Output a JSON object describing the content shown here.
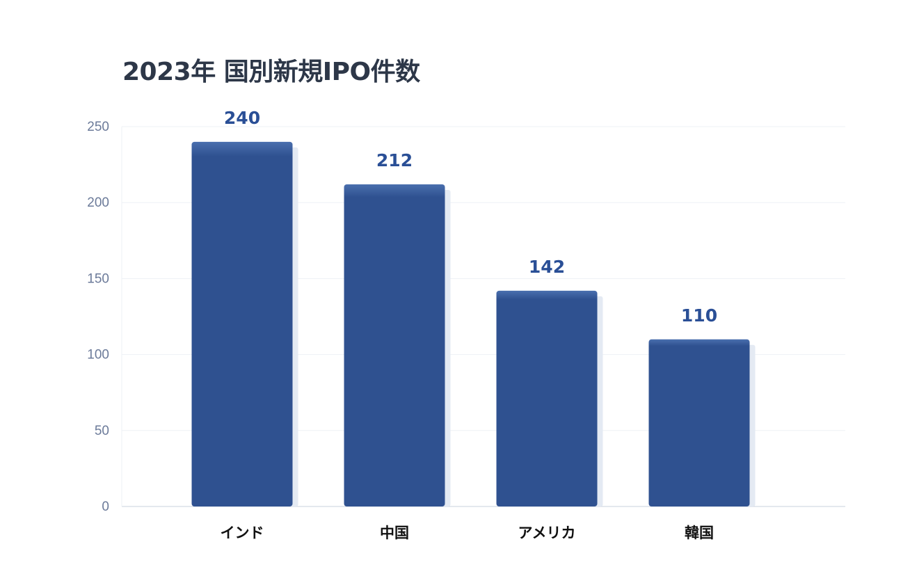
{
  "chart_data": {
    "type": "bar",
    "title": "2023年 国別新規IPO件数",
    "categories": [
      "インド",
      "中国",
      "アメリカ",
      "韓国"
    ],
    "values": [
      240,
      212,
      142,
      110
    ],
    "data_labels": [
      "240",
      "212",
      "142",
      "110"
    ],
    "yticks": [
      0,
      50,
      100,
      150,
      200,
      250
    ],
    "ylim": [
      0,
      250
    ],
    "grid": true,
    "legend": "none",
    "colors": {
      "bar": "#2f5190",
      "label": "#2a4f96",
      "title": "#2d3748",
      "tick": "#6b7a99",
      "grid": "#eef1f5"
    }
  }
}
